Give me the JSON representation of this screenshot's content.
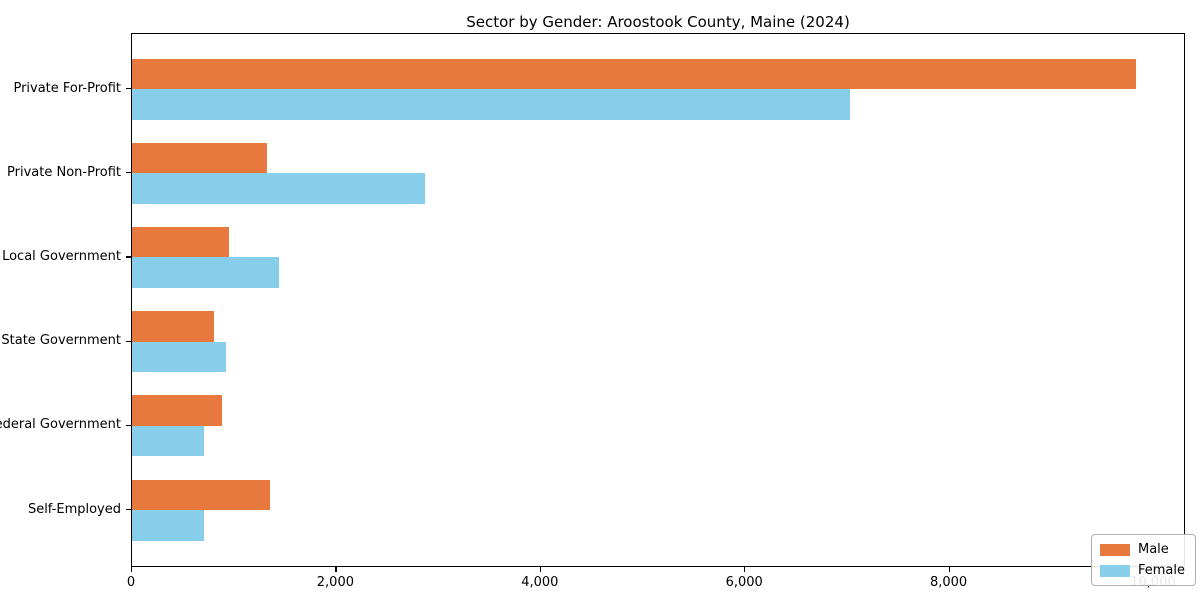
{
  "chart_data": {
    "type": "bar",
    "orientation": "horizontal",
    "title": "Sector by Gender: Aroostook County, Maine (2024)",
    "categories": [
      "Private For-Profit",
      "Private Non-Profit",
      "Local Government",
      "State Government",
      "Federal Government",
      "Self-Employed"
    ],
    "series": [
      {
        "name": "Male",
        "color": "#e8793e",
        "values": [
          9820,
          1320,
          950,
          800,
          880,
          1350
        ]
      },
      {
        "name": "Female",
        "color": "#87ceeb",
        "values": [
          7030,
          2870,
          1440,
          920,
          700,
          700
        ]
      }
    ],
    "xlabel": "",
    "ylabel": "",
    "xlim": [
      0,
      10313
    ],
    "x_ticks": [
      0,
      2000,
      4000,
      6000,
      8000,
      10000
    ],
    "x_tick_labels": [
      "0",
      "2,000",
      "4,000",
      "6,000",
      "8,000",
      "10,000"
    ],
    "grid": false,
    "legend_position": "lower right",
    "legend_entries": [
      "Male",
      "Female"
    ]
  }
}
